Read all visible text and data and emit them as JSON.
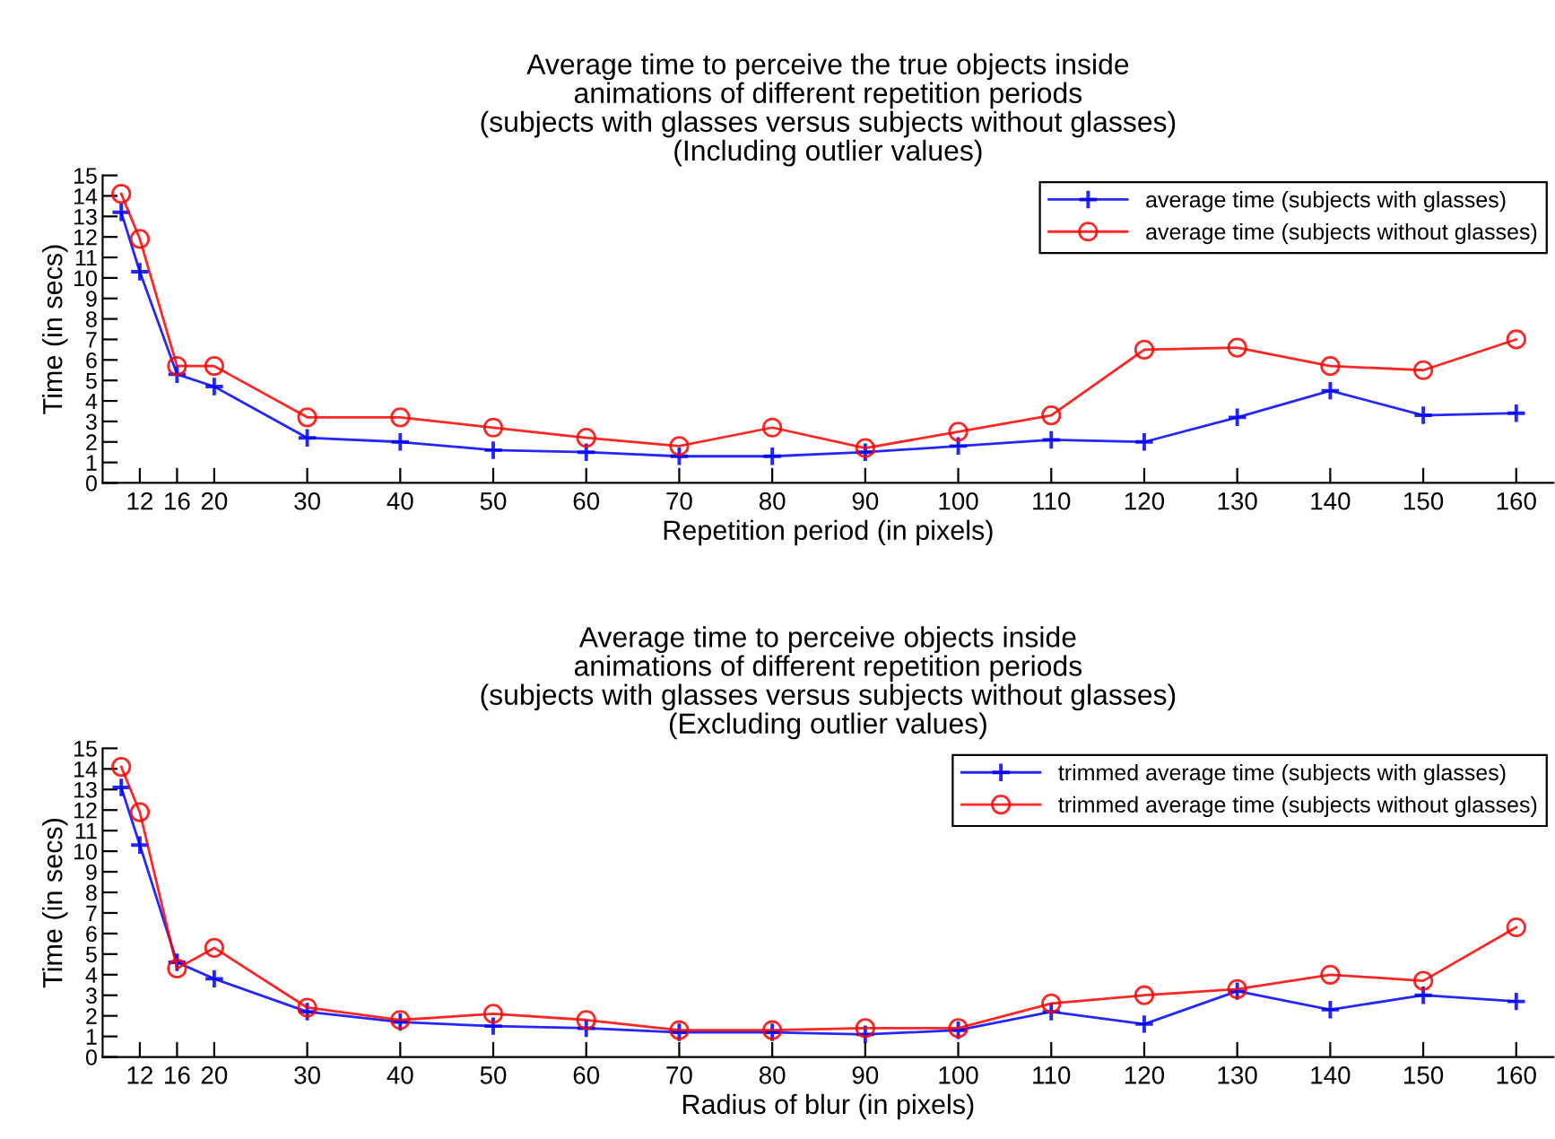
{
  "chart_data": [
    {
      "type": "line",
      "title": "Average time to perceive the true objects inside\nanimations of different repetition periods\n(subjects with glasses versus subjects without glasses)\n(Including outlier values)",
      "xlabel": "Repetition period (in pixels)",
      "ylabel": "Time (in secs)",
      "x": [
        10,
        12,
        16,
        20,
        30,
        40,
        50,
        60,
        70,
        80,
        90,
        100,
        110,
        120,
        130,
        140,
        150,
        160
      ],
      "xlim": [
        8,
        164
      ],
      "xticks": [
        12,
        16,
        20,
        30,
        40,
        50,
        60,
        70,
        80,
        90,
        100,
        110,
        120,
        130,
        140,
        150,
        160
      ],
      "ylim": [
        0,
        15
      ],
      "yticks": [
        0,
        1,
        2,
        3,
        4,
        5,
        6,
        7,
        8,
        9,
        10,
        11,
        12,
        13,
        14,
        15
      ],
      "grid": false,
      "legend": "top right",
      "series": [
        {
          "name": "average time (subjects with glasses)",
          "color": "#0000ff",
          "marker": "cross",
          "values": [
            13.2,
            10.3,
            5.3,
            4.7,
            2.2,
            2.0,
            1.6,
            1.5,
            1.3,
            1.3,
            1.5,
            1.8,
            2.1,
            2.0,
            3.2,
            4.5,
            3.3,
            3.4
          ]
        },
        {
          "name": "average time (subjects without glasses)",
          "color": "#ff0000",
          "marker": "circle",
          "values": [
            14.1,
            11.9,
            5.7,
            5.7,
            3.2,
            3.2,
            2.7,
            2.2,
            1.8,
            2.7,
            1.7,
            2.5,
            3.3,
            6.5,
            6.6,
            5.7,
            5.5,
            7.0
          ]
        }
      ]
    },
    {
      "type": "line",
      "title": "Average time to perceive objects inside\nanimations of different repetition periods\n(subjects with glasses versus subjects without glasses)\n(Excluding outlier values)",
      "xlabel": "Radius of blur (in pixels)",
      "ylabel": "Time (in secs)",
      "x": [
        10,
        12,
        16,
        20,
        30,
        40,
        50,
        60,
        70,
        80,
        90,
        100,
        110,
        120,
        130,
        140,
        150,
        160
      ],
      "xlim": [
        8,
        164
      ],
      "xticks": [
        12,
        16,
        20,
        30,
        40,
        50,
        60,
        70,
        80,
        90,
        100,
        110,
        120,
        130,
        140,
        150,
        160
      ],
      "ylim": [
        0,
        15
      ],
      "yticks": [
        0,
        1,
        2,
        3,
        4,
        5,
        6,
        7,
        8,
        9,
        10,
        11,
        12,
        13,
        14,
        15
      ],
      "grid": false,
      "legend": "top right",
      "series": [
        {
          "name": "trimmed average time (subjects with glasses)",
          "color": "#0000ff",
          "marker": "cross",
          "values": [
            13.1,
            10.3,
            4.6,
            3.8,
            2.2,
            1.7,
            1.5,
            1.4,
            1.2,
            1.2,
            1.1,
            1.3,
            2.2,
            1.6,
            3.2,
            2.3,
            3.0,
            2.7
          ]
        },
        {
          "name": "trimmed average time (subjects without glasses)",
          "color": "#ff0000",
          "marker": "circle",
          "values": [
            14.1,
            11.9,
            4.3,
            5.3,
            2.4,
            1.8,
            2.1,
            1.8,
            1.3,
            1.3,
            1.4,
            1.4,
            2.6,
            3.0,
            3.3,
            4.0,
            3.7,
            6.3
          ]
        }
      ]
    }
  ]
}
